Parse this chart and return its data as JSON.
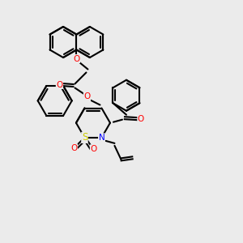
{
  "bg_color": "#ebebeb",
  "bond_color": "#000000",
  "bond_width": 1.5,
  "atom_colors": {
    "O": "#ff0000",
    "N": "#0000ff",
    "S": "#cccc00"
  },
  "font_size": 7.5,
  "figsize": [
    3.0,
    3.0
  ],
  "dpi": 100
}
